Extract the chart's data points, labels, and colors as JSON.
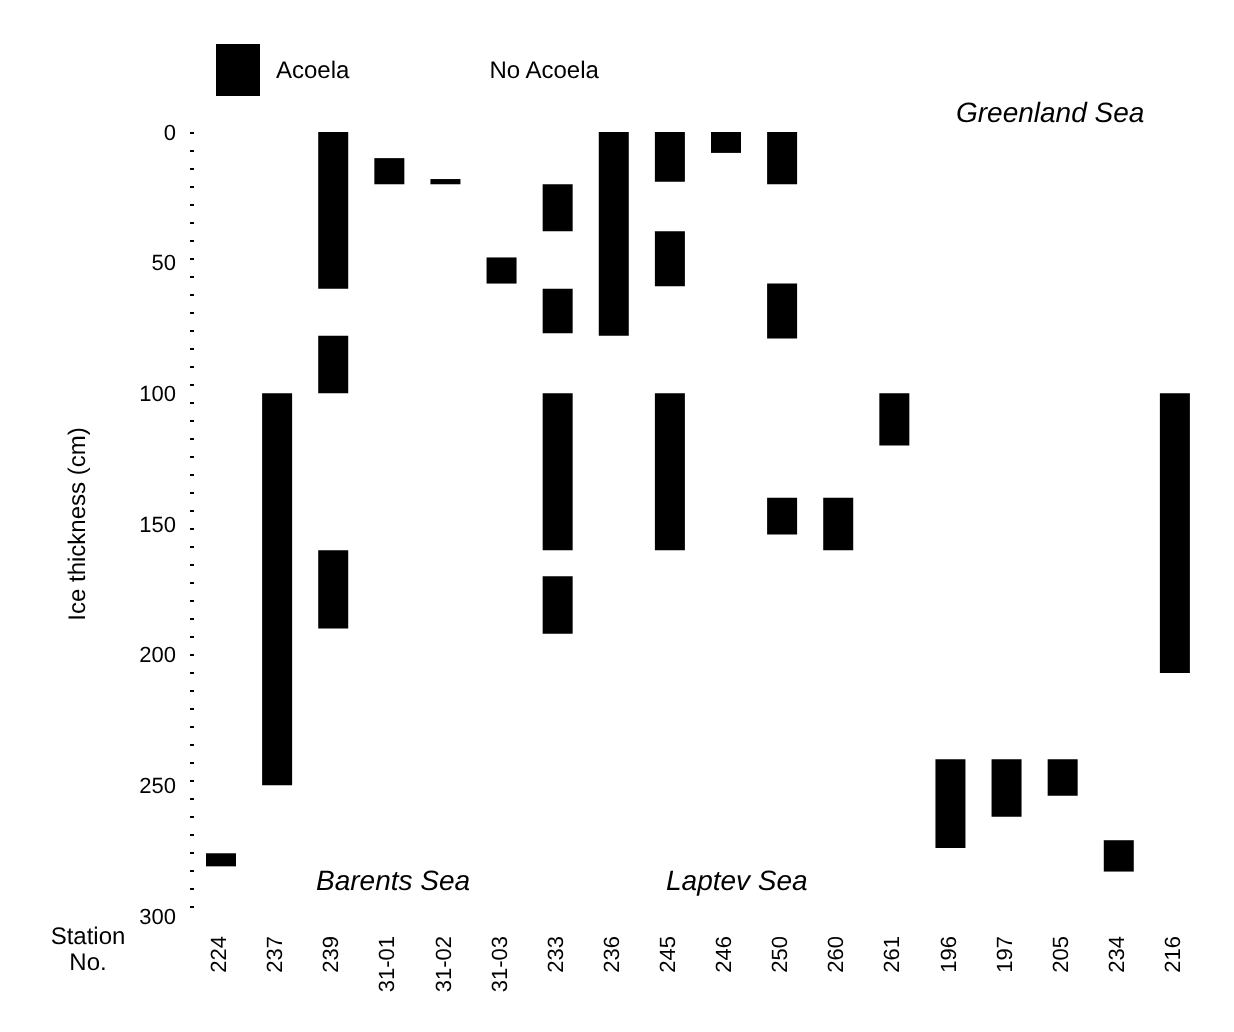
{
  "chart_data": {
    "type": "bar",
    "ylabel": "Ice thickness (cm)",
    "xlabel": "Station No.",
    "categories": [
      "224",
      "237",
      "239",
      "31-01",
      "31-02",
      "31-03",
      "233",
      "236",
      "245",
      "246",
      "250",
      "260",
      "261",
      "196",
      "197",
      "205",
      "234",
      "216"
    ],
    "series": [
      {
        "name": "Acoela",
        "color": "#000000",
        "base": [
          276,
          100,
          0,
          10,
          18,
          48,
          20,
          0,
          0,
          0,
          0,
          140,
          100,
          240,
          240,
          240,
          271,
          100
        ],
        "values": [
          5,
          150,
          60,
          10,
          2,
          10,
          18,
          78,
          19,
          8,
          20,
          20,
          20,
          34,
          22,
          14,
          12,
          107
        ]
      },
      {
        "color": "#000000",
        "base": [
          null,
          null,
          78,
          null,
          null,
          null,
          60,
          null,
          38,
          null,
          58,
          null,
          null,
          null,
          null,
          null,
          null,
          null
        ],
        "values": [
          null,
          null,
          22,
          null,
          null,
          null,
          17,
          null,
          21,
          null,
          21,
          null,
          null,
          null,
          null,
          null,
          null,
          null
        ]
      },
      {
        "color": "#000000",
        "base": [
          null,
          null,
          160,
          null,
          null,
          null,
          100,
          null,
          100,
          null,
          140,
          null,
          null,
          null,
          null,
          null,
          null,
          null
        ],
        "values": [
          null,
          null,
          30,
          null,
          null,
          null,
          60,
          null,
          60,
          null,
          14,
          null,
          null,
          null,
          null,
          null,
          null,
          null
        ]
      },
      {
        "color": "#000000",
        "base": [
          null,
          null,
          null,
          null,
          null,
          null,
          170,
          null,
          null,
          null,
          null,
          null,
          null,
          null,
          null,
          null,
          null,
          null
        ],
        "values": [
          null,
          null,
          null,
          null,
          null,
          null,
          22,
          null,
          null,
          null,
          null,
          null,
          null,
          null,
          null,
          null,
          null,
          null
        ]
      },
      {
        "name": "No Acoela",
        "values": [
          null,
          null,
          null,
          null,
          null,
          null,
          null,
          null,
          null,
          null,
          null,
          null,
          null,
          null,
          null,
          null,
          null,
          null
        ]
      }
    ],
    "ylim": [
      300,
      0
    ],
    "yticks": [
      0,
      50,
      100,
      150,
      200,
      250,
      300
    ],
    "grid": false,
    "legend": "top left",
    "annotations": [
      "Greenland Sea",
      "Barents Sea",
      "Laptev Sea"
    ]
  }
}
